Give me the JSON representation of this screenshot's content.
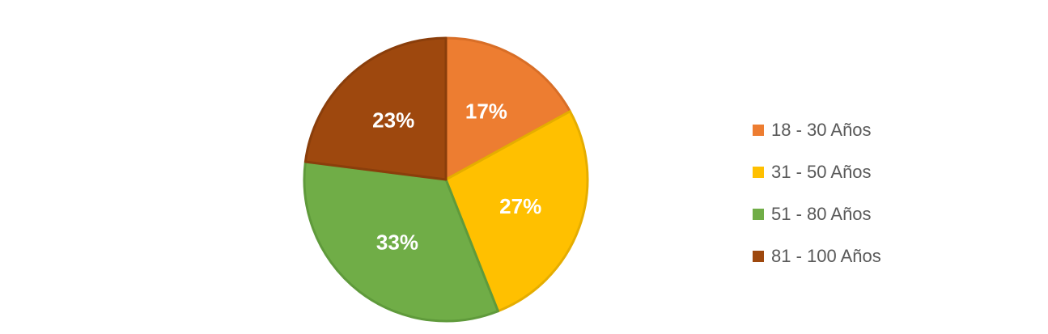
{
  "chart_data": {
    "type": "pie",
    "title": "",
    "categories": [
      "18 - 30 Años",
      "31 - 50 Años",
      "51 - 80 Años",
      "81 - 100 Años"
    ],
    "values": [
      17,
      27,
      33,
      23
    ],
    "data_labels": [
      "17%",
      "27%",
      "33%",
      "23%"
    ],
    "colors": [
      "#ED7D31",
      "#FFC000",
      "#70AD47",
      "#9E480E"
    ],
    "border_colors": [
      "#D86E27",
      "#E5AD00",
      "#5F9A3B",
      "#8A3E0B"
    ],
    "legend_position": "right",
    "start_angle": "12 o'clock, clockwise"
  }
}
